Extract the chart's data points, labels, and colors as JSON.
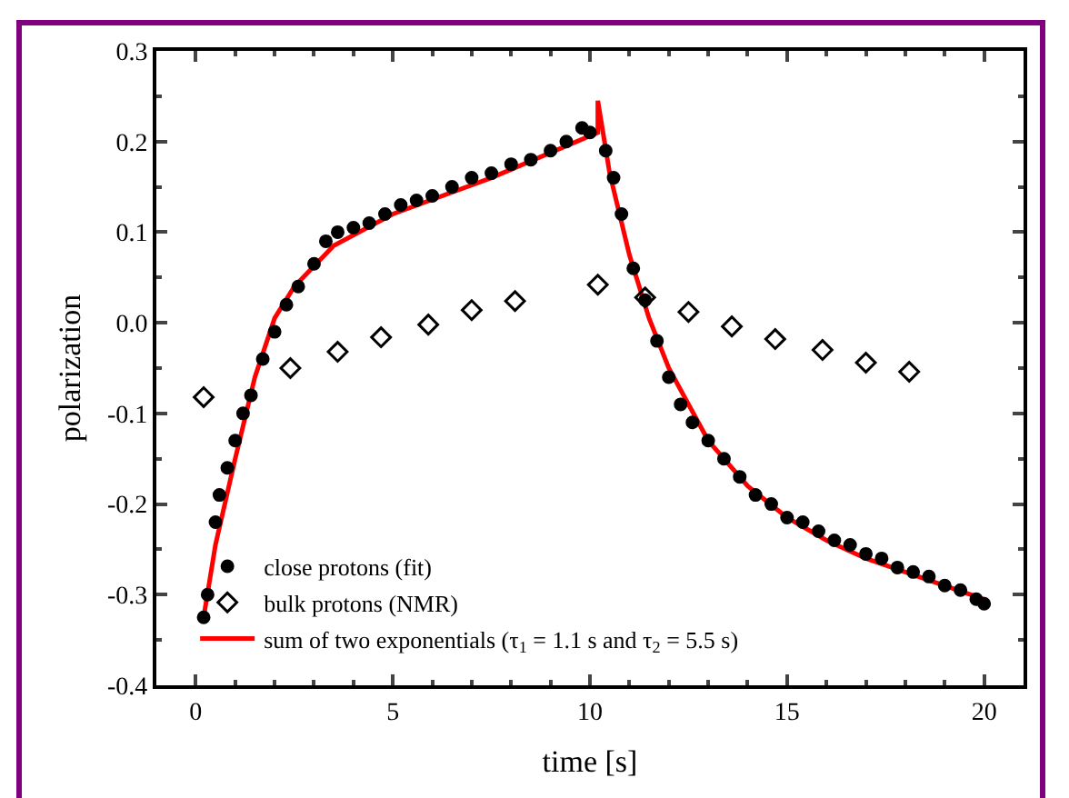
{
  "chart_data": {
    "type": "scatter",
    "xlabel": "time [s]",
    "ylabel": "polarization",
    "xlim": [
      -1,
      21
    ],
    "xticks": [
      0,
      5,
      10,
      15,
      20
    ],
    "ylim": [
      -0.4,
      0.3
    ],
    "yticks": [
      -0.4,
      -0.3,
      -0.2,
      -0.1,
      {
        "value": 0,
        "label": "0.0"
      },
      0.1,
      0.2,
      0.3
    ],
    "grid": false,
    "legend": "bottom left",
    "series": [
      {
        "name": "close protons (fit)",
        "marker": "circle",
        "color": "#000000",
        "x": [
          0.2,
          0.3,
          0.5,
          0.6,
          0.8,
          1.0,
          1.2,
          1.4,
          1.7,
          2.0,
          2.3,
          2.6,
          3.0,
          3.3,
          3.6,
          4.0,
          4.4,
          4.8,
          5.2,
          5.6,
          6.0,
          6.5,
          7.0,
          7.5,
          8.0,
          8.5,
          9.0,
          9.4,
          9.8,
          10.0,
          10.4,
          10.6,
          10.8,
          11.1,
          11.4,
          11.7,
          12.0,
          12.3,
          12.6,
          13.0,
          13.4,
          13.8,
          14.2,
          14.6,
          15.0,
          15.4,
          15.8,
          16.2,
          16.6,
          17.0,
          17.4,
          17.8,
          18.2,
          18.6,
          19.0,
          19.4,
          19.8,
          20.0
        ],
        "values": [
          -0.325,
          -0.3,
          -0.22,
          -0.19,
          -0.16,
          -0.13,
          -0.1,
          -0.08,
          -0.04,
          -0.01,
          0.02,
          0.04,
          0.065,
          0.09,
          0.1,
          0.105,
          0.11,
          0.12,
          0.13,
          0.135,
          0.14,
          0.15,
          0.16,
          0.165,
          0.175,
          0.18,
          0.19,
          0.2,
          0.215,
          0.21,
          0.19,
          0.16,
          0.12,
          0.06,
          0.025,
          -0.02,
          -0.06,
          -0.09,
          -0.11,
          -0.13,
          -0.15,
          -0.17,
          -0.19,
          -0.2,
          -0.215,
          -0.22,
          -0.23,
          -0.24,
          -0.245,
          -0.255,
          -0.26,
          -0.27,
          -0.275,
          -0.28,
          -0.29,
          -0.295,
          -0.305,
          -0.31
        ]
      },
      {
        "name": "bulk protons (NMR)",
        "marker": "diamond",
        "color": "#000000",
        "x": [
          0.2,
          2.4,
          3.6,
          4.7,
          5.9,
          7.0,
          8.1,
          10.2,
          11.4,
          12.5,
          13.6,
          14.7,
          15.9,
          17.0,
          18.1
        ],
        "values": [
          -0.082,
          -0.05,
          -0.032,
          -0.016,
          -0.002,
          0.014,
          0.024,
          0.042,
          0.028,
          0.012,
          -0.004,
          -0.018,
          -0.03,
          -0.044,
          -0.054
        ]
      },
      {
        "name": "sum of two exponentials (τ$_{1}$ = 1.1 s and τ$_{2}$ = 5.5 s)",
        "type": "line",
        "marker": "none",
        "line_style": "solid",
        "color": "#ff0000",
        "x": [
          0.2,
          0.5,
          1.0,
          1.5,
          2.0,
          2.5,
          3.5,
          5.0,
          7.5,
          10.2,
          10.2,
          10.5,
          11.0,
          11.5,
          12.0,
          13.0,
          14.0,
          15.0,
          16.0,
          17.0,
          18.0,
          19.0,
          20.0
        ],
        "values": [
          -0.325,
          -0.245,
          -0.15,
          -0.06,
          0.005,
          0.04,
          0.085,
          0.12,
          0.16,
          0.21,
          0.245,
          0.165,
          0.075,
          0.005,
          -0.05,
          -0.13,
          -0.18,
          -0.215,
          -0.24,
          -0.26,
          -0.275,
          -0.29,
          -0.305
        ]
      }
    ]
  }
}
